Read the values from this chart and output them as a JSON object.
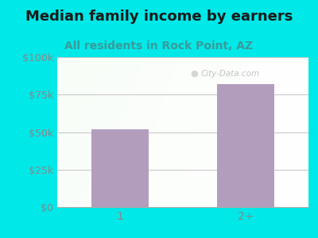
{
  "title": "Median family income by earners",
  "subtitle": "All residents in Rock Point, AZ",
  "categories": [
    "1",
    "2+"
  ],
  "values": [
    52000,
    82000
  ],
  "bar_color": "#b39dbd",
  "outer_bg_color": "#00e8e8",
  "title_color": "#1a1a1a",
  "subtitle_color": "#3a9a9a",
  "tick_label_color": "#888888",
  "ylim": [
    0,
    100000
  ],
  "yticks": [
    0,
    25000,
    50000,
    75000,
    100000
  ],
  "ytick_labels": [
    "$0",
    "$25k",
    "$50k",
    "$75k",
    "$100k"
  ],
  "watermark": "City-Data.com",
  "title_fontsize": 13,
  "subtitle_fontsize": 10,
  "tick_fontsize": 9
}
